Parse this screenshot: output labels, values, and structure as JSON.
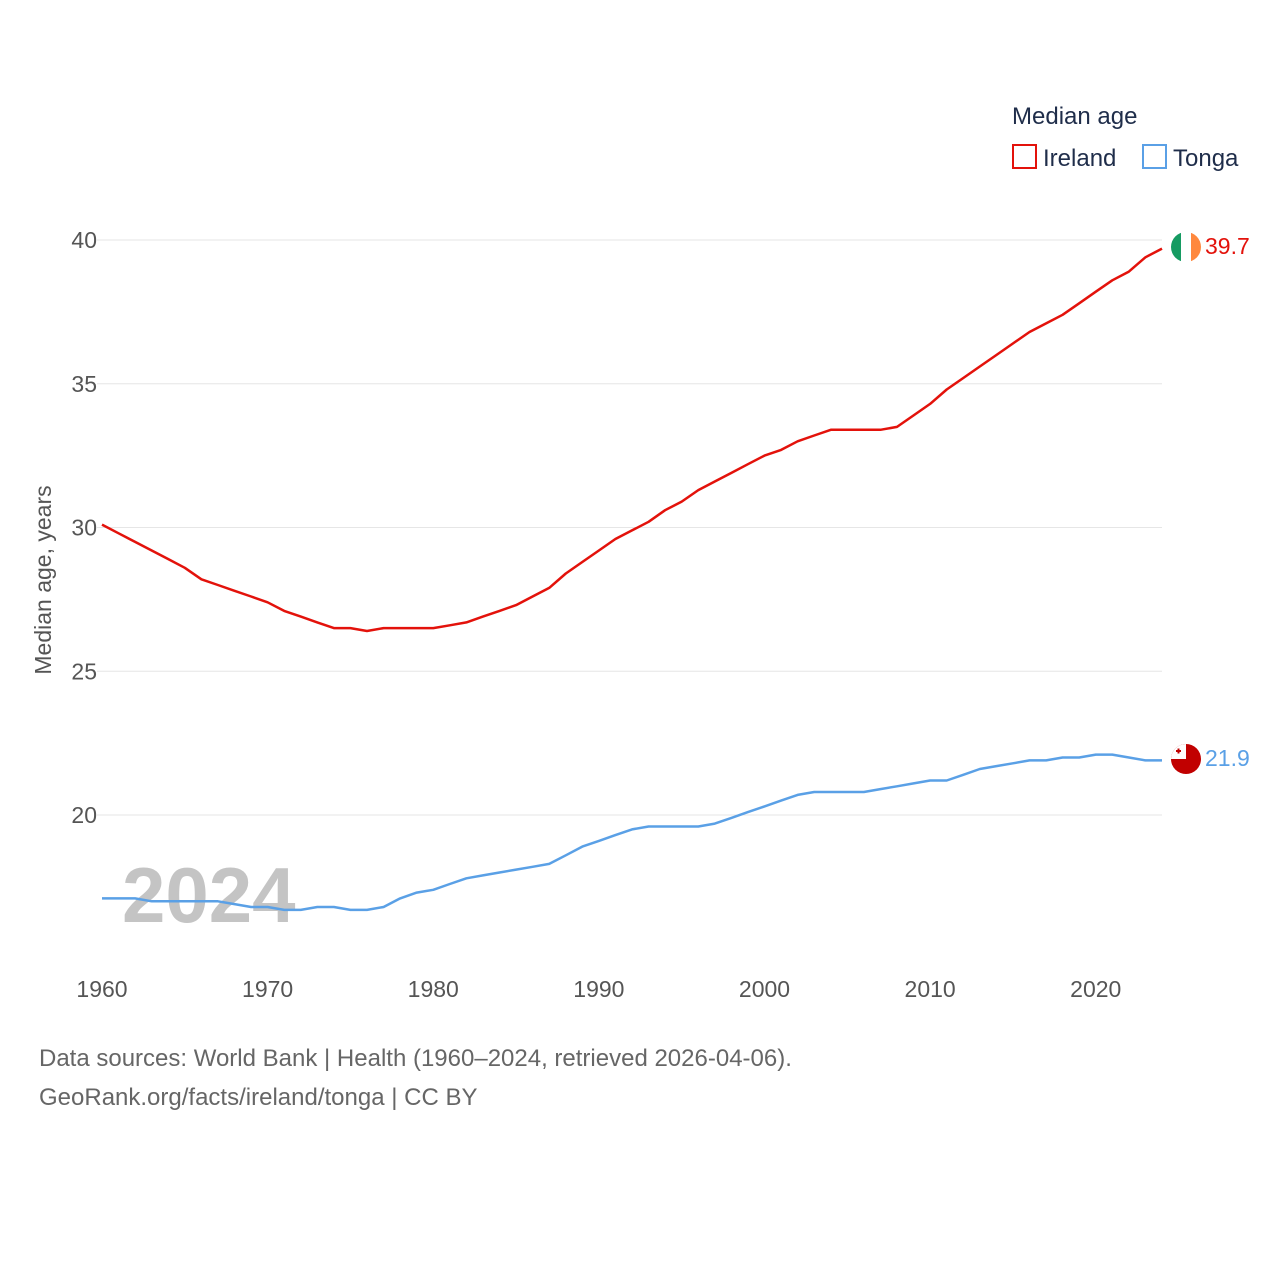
{
  "chart_data": {
    "type": "line",
    "legend_title": "Median age",
    "ylabel": "Median age, years",
    "xlabel": "",
    "year_label": "2024",
    "ylim": [
      15.5,
      41.5
    ],
    "xlim": [
      1960,
      2024
    ],
    "yticks": [
      20,
      25,
      30,
      35,
      40
    ],
    "xticks": [
      1960,
      1970,
      1980,
      1990,
      2000,
      2010,
      2020
    ],
    "x": [
      1960,
      1961,
      1962,
      1963,
      1964,
      1965,
      1966,
      1967,
      1968,
      1969,
      1970,
      1971,
      1972,
      1973,
      1974,
      1975,
      1976,
      1977,
      1978,
      1979,
      1980,
      1981,
      1982,
      1983,
      1984,
      1985,
      1986,
      1987,
      1988,
      1989,
      1990,
      1991,
      1992,
      1993,
      1994,
      1995,
      1996,
      1997,
      1998,
      1999,
      2000,
      2001,
      2002,
      2003,
      2004,
      2005,
      2006,
      2007,
      2008,
      2009,
      2010,
      2011,
      2012,
      2013,
      2014,
      2015,
      2016,
      2017,
      2018,
      2019,
      2020,
      2021,
      2022,
      2023,
      2024
    ],
    "series": [
      {
        "name": "Ireland",
        "color": "#e3120b",
        "end_label": "39.7",
        "flag": "ireland-flag",
        "values": [
          30.1,
          29.8,
          29.5,
          29.2,
          28.9,
          28.6,
          28.2,
          28.0,
          27.8,
          27.6,
          27.4,
          27.1,
          26.9,
          26.7,
          26.5,
          26.5,
          26.4,
          26.5,
          26.5,
          26.5,
          26.5,
          26.6,
          26.7,
          26.9,
          27.1,
          27.3,
          27.6,
          27.9,
          28.4,
          28.8,
          29.2,
          29.6,
          29.9,
          30.2,
          30.6,
          30.9,
          31.3,
          31.6,
          31.9,
          32.2,
          32.5,
          32.7,
          33.0,
          33.2,
          33.4,
          33.4,
          33.4,
          33.4,
          33.5,
          33.9,
          34.3,
          34.8,
          35.2,
          35.6,
          36.0,
          36.4,
          36.8,
          37.1,
          37.4,
          37.8,
          38.2,
          38.6,
          38.9,
          39.4,
          39.7
        ]
      },
      {
        "name": "Tonga",
        "color": "#5aa0e6",
        "end_label": "21.9",
        "flag": "tonga-flag",
        "values": [
          17.1,
          17.1,
          17.1,
          17.0,
          17.0,
          17.0,
          17.0,
          17.0,
          16.9,
          16.8,
          16.8,
          16.7,
          16.7,
          16.8,
          16.8,
          16.7,
          16.7,
          16.8,
          17.1,
          17.3,
          17.4,
          17.6,
          17.8,
          17.9,
          18.0,
          18.1,
          18.2,
          18.3,
          18.6,
          18.9,
          19.1,
          19.3,
          19.5,
          19.6,
          19.6,
          19.6,
          19.6,
          19.7,
          19.9,
          20.1,
          20.3,
          20.5,
          20.7,
          20.8,
          20.8,
          20.8,
          20.8,
          20.9,
          21.0,
          21.1,
          21.2,
          21.2,
          21.4,
          21.6,
          21.7,
          21.8,
          21.9,
          21.9,
          22.0,
          22.0,
          22.1,
          22.1,
          22.0,
          21.9,
          21.9
        ]
      }
    ]
  },
  "footer": {
    "line1": "Data sources: World Bank | Health (1960–2024, retrieved 2026-04-06).",
    "line2": "GeoRank.org/facts/ireland/tonga | CC BY"
  },
  "colors": {
    "grid": "#e6e6e6",
    "tick_text": "#555555"
  }
}
